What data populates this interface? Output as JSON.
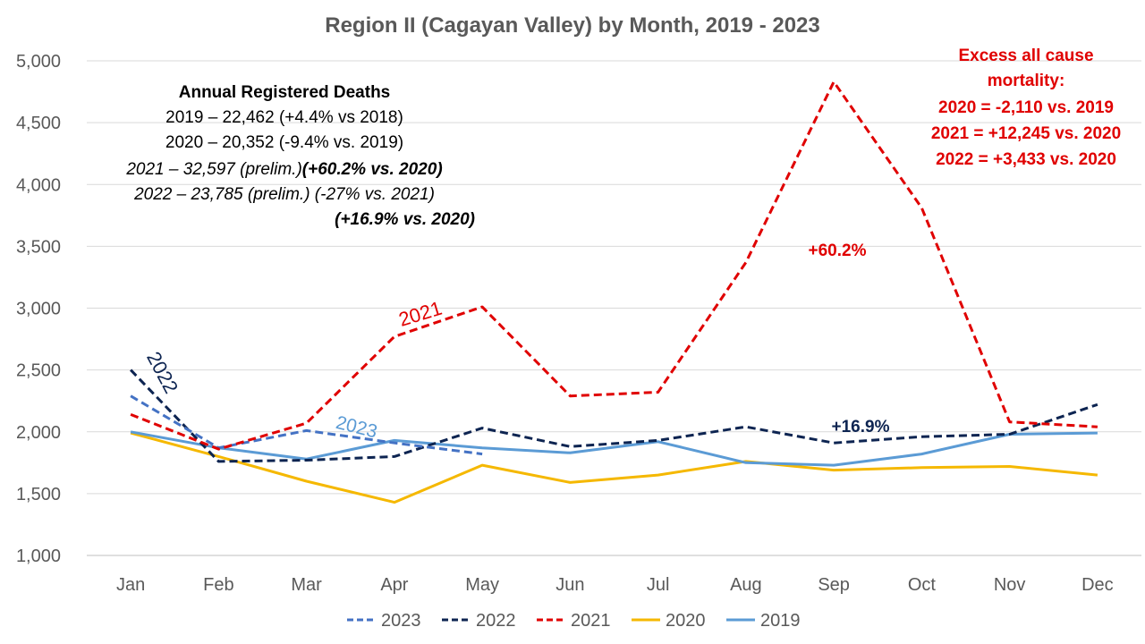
{
  "chart_data": {
    "type": "line",
    "title": "Region II (Cagayan Valley) by Month, 2019 - 2023",
    "xlabel": "",
    "ylabel": "",
    "ylim": [
      1000,
      5000
    ],
    "yticks": [
      "1,000",
      "1,500",
      "2,000",
      "2,500",
      "3,000",
      "3,500",
      "4,000",
      "4,500",
      "5,000"
    ],
    "grid": true,
    "legend_position": "bottom",
    "categories": [
      "Jan",
      "Feb",
      "Mar",
      "Apr",
      "May",
      "Jun",
      "Jul",
      "Aug",
      "Sep",
      "Oct",
      "Nov",
      "Dec"
    ],
    "series": [
      {
        "name": "2023",
        "color": "#4472c4",
        "dash": "dashed",
        "values": [
          2290,
          1870,
          2010,
          1910,
          1820,
          null,
          null,
          null,
          null,
          null,
          null,
          null
        ]
      },
      {
        "name": "2022",
        "color": "#0d2451",
        "dash": "dashed",
        "values": [
          2500,
          1760,
          1770,
          1800,
          2030,
          1880,
          1930,
          2040,
          1910,
          1960,
          1980,
          2220
        ]
      },
      {
        "name": "2021",
        "color": "#e00000",
        "dash": "dashed",
        "values": [
          2140,
          1860,
          2070,
          2770,
          3010,
          2290,
          2320,
          3370,
          4830,
          3810,
          2080,
          2040
        ]
      },
      {
        "name": "2020",
        "color": "#f5b800",
        "dash": "solid",
        "values": [
          1990,
          1800,
          1600,
          1430,
          1730,
          1590,
          1650,
          1760,
          1690,
          1710,
          1720,
          1650
        ]
      },
      {
        "name": "2019",
        "color": "#5b9bd5",
        "dash": "solid",
        "values": [
          2000,
          1870,
          1780,
          1930,
          1870,
          1830,
          1920,
          1750,
          1730,
          1820,
          1980,
          1990
        ]
      }
    ],
    "series_labels": [
      {
        "text": "2021",
        "color": "#e00000"
      },
      {
        "text": "2022",
        "color": "#0d2451"
      },
      {
        "text": "2023",
        "color": "#5b9bd5"
      }
    ],
    "annotations": [
      {
        "text": "+60.2%",
        "color": "#e00000"
      },
      {
        "text": "+16.9%",
        "color": "#0d2451"
      }
    ]
  },
  "notes": {
    "heading": "Annual Registered Deaths",
    "line1": "2019 – 22,462 (+4.4% vs 2018)",
    "line2": "2020 – 20,352 (-9.4% vs. 2019)",
    "line3a": "2021 – 32,597 (prelim.)",
    "line3b": "(+60.2% vs. 2020)",
    "line4": "2022 – 23,785 (prelim.) (-27% vs. 2021)",
    "line5": "(+16.9% vs. 2020)"
  },
  "excess": {
    "line1": "Excess all cause",
    "line2": "mortality:",
    "line3": "2020 = -2,110 vs. 2019",
    "line4": "2021 = +12,245 vs. 2020",
    "line5": "2022 = +3,433 vs. 2020"
  }
}
